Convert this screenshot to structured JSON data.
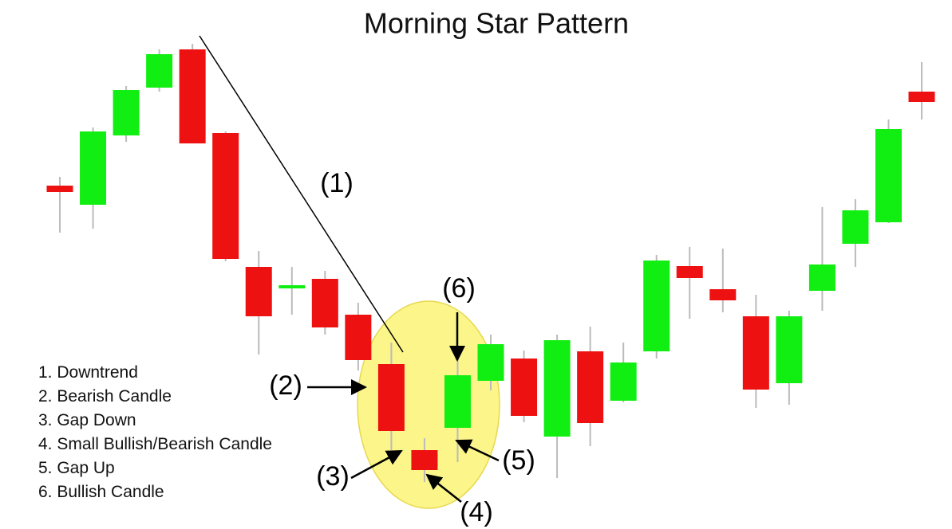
{
  "chart_data": {
    "type": "candlestick",
    "title": "Morning Star Pattern",
    "up_color": "#11ee11",
    "down_color": "#ee1111",
    "ylim": [
      0,
      664
    ],
    "open": [
      431,
      407,
      494,
      554,
      602,
      497,
      329,
      302,
      314,
      269,
      207,
      99,
      127,
      186,
      214,
      116,
      223,
      161,
      223,
      330,
      301,
      267,
      183,
      299,
      358,
      385,
      549
    ],
    "high": [
      442,
      504,
      556,
      602,
      609,
      499,
      349,
      329,
      324,
      284,
      234,
      114,
      214,
      244,
      224,
      244,
      254,
      234,
      344,
      354,
      352,
      294,
      274,
      404,
      414,
      514,
      586
    ],
    "low": [
      372,
      377,
      486,
      549,
      484,
      336,
      219,
      269,
      244,
      199,
      99,
      59,
      84,
      174,
      134,
      64,
      104,
      159,
      214,
      264,
      272,
      152,
      156,
      274,
      329,
      384,
      514
    ],
    "close": [
      423,
      499,
      551,
      596,
      484,
      339,
      267,
      306,
      253,
      212,
      123,
      74,
      193,
      232,
      142,
      237,
      133,
      209,
      337,
      315,
      287,
      175,
      267,
      332,
      400,
      502,
      536
    ],
    "annotations": [
      "(1)",
      "(2)",
      "(3)",
      "(4)",
      "(5)",
      "(6)"
    ],
    "legend": [
      "1. Downtrend",
      "2. Bearish Candle",
      "3. Gap Down",
      "4. Small Bullish/Bearish Candle",
      "5. Gap Up",
      "6. Bullish Candle"
    ]
  }
}
